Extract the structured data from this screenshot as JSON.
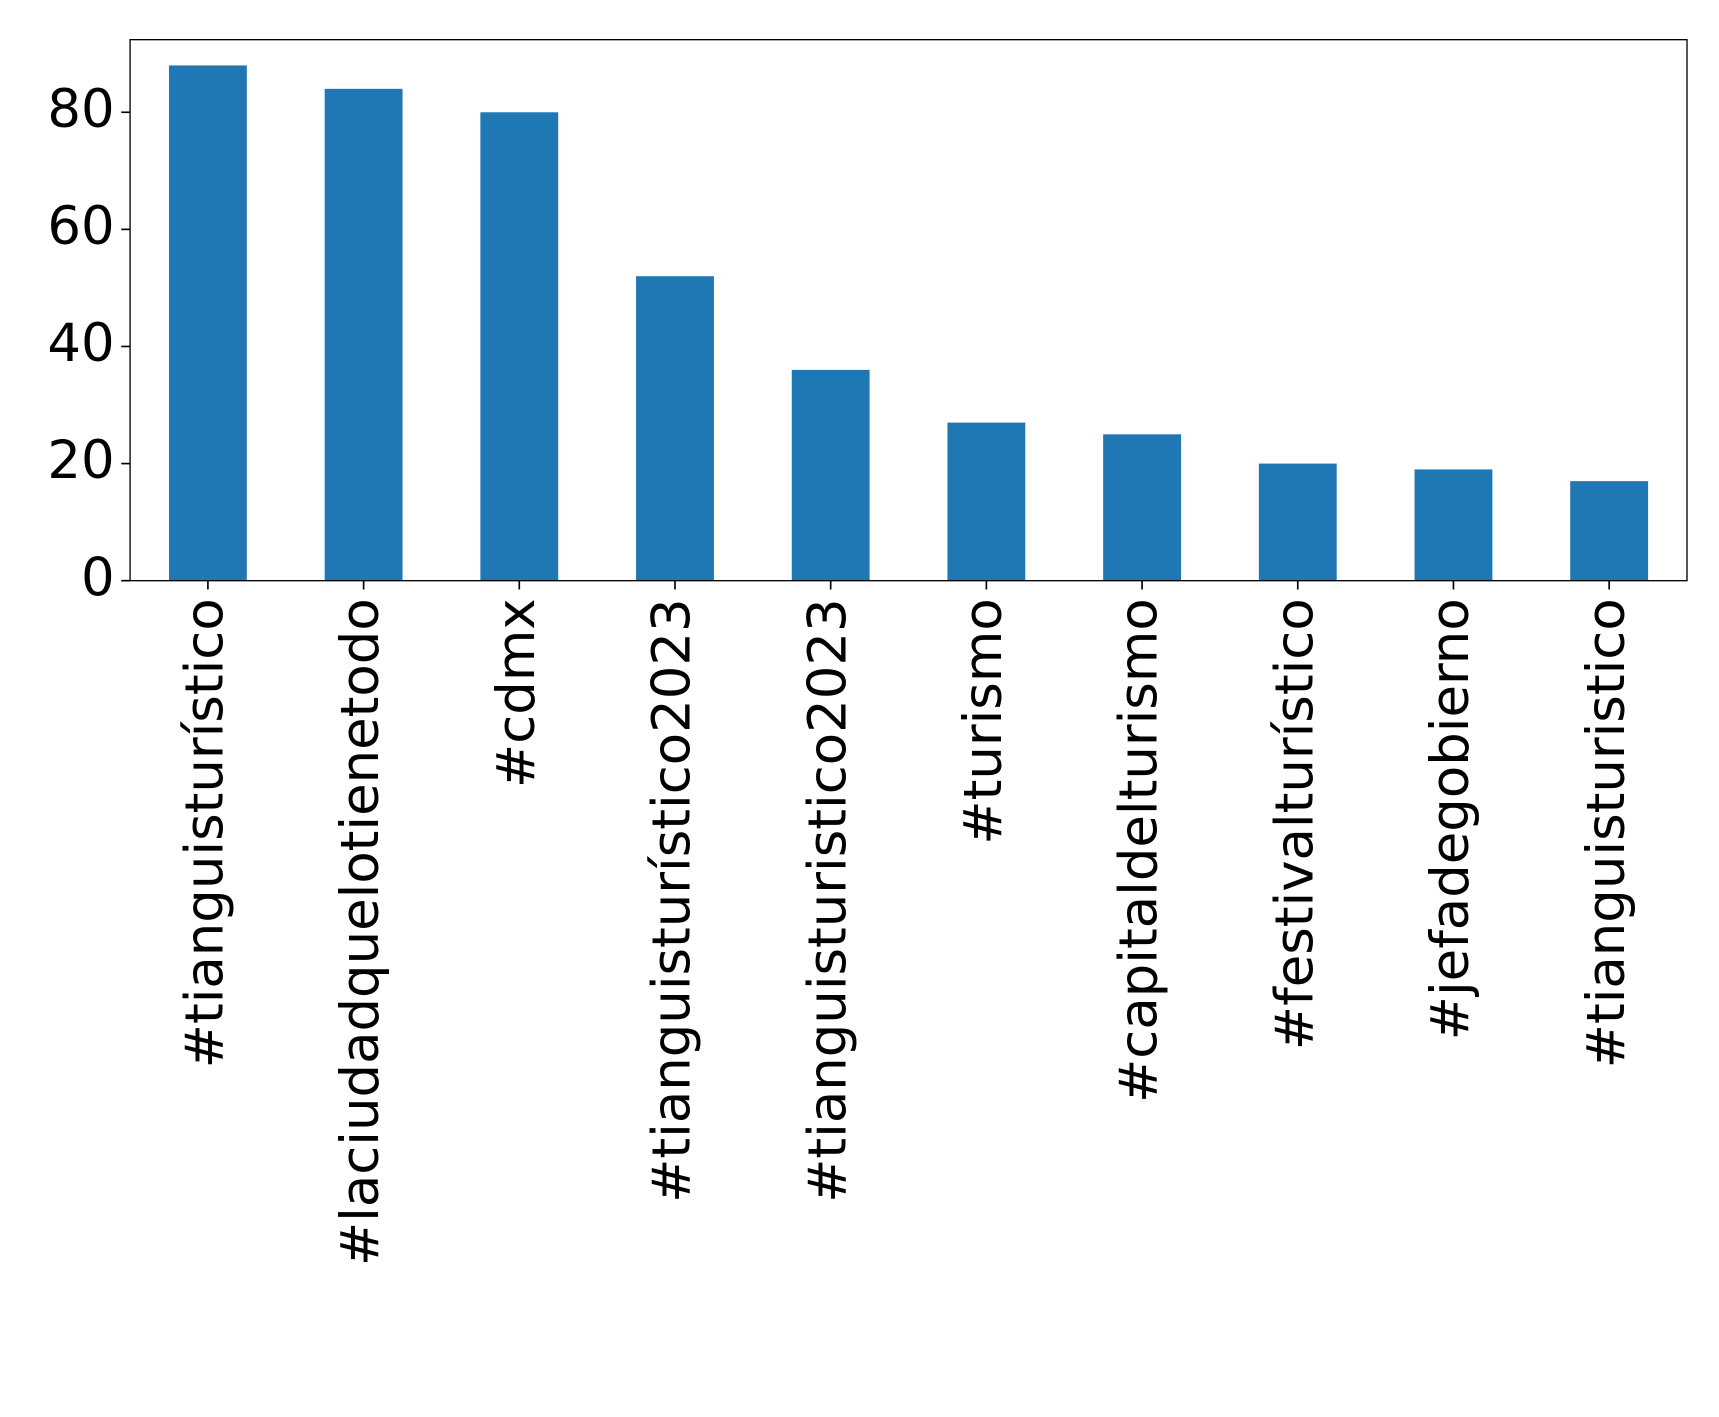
{
  "chart_data": {
    "type": "bar",
    "categories": [
      "#tianguisturístico",
      "#laciudadquelotienetodo",
      "#cdmx",
      "#tianguisturístico2023",
      "#tianguisturistico2023",
      "#turismo",
      "#capitaldelturismo",
      "#festivalturístico",
      "#jefadegobierno",
      "#tianguisturistico"
    ],
    "values": [
      88,
      84,
      80,
      52,
      36,
      27,
      25,
      20,
      19,
      17
    ],
    "color": "#1f77b4",
    "ylim": [
      0,
      92.4
    ],
    "yticks": [
      0,
      20,
      40,
      60,
      80
    ],
    "grid": false
  }
}
